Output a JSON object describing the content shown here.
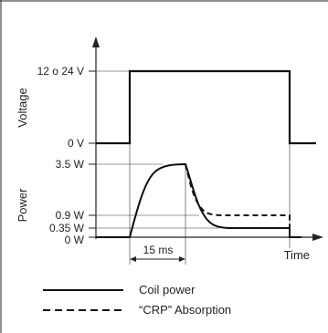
{
  "chart_data": [
    {
      "type": "line",
      "ylabel": "Voltage",
      "y_ticks": [
        "12 o 24 V",
        "0 V"
      ]
    },
    {
      "type": "line",
      "ylabel": "Power",
      "xlabel": "Time",
      "y_ticks": [
        "3.5 W",
        "0.9 W",
        "0.35 W",
        "0 W"
      ],
      "interval_label": "15 ms",
      "series": [
        {
          "name": "Coil power",
          "line_style": "solid",
          "values_W": {
            "initial": 0,
            "peak": 3.5,
            "hold": 0.35,
            "final": 0
          }
        },
        {
          "name": "“CRP” Absorption",
          "line_style": "dashed",
          "values_W": {
            "initial": 0,
            "peak": 3.5,
            "hold": 0.9,
            "final": 0
          }
        }
      ]
    }
  ],
  "legend": {
    "coil_power": "Coil power",
    "crp_absorption": "“CRP” Absorption"
  }
}
